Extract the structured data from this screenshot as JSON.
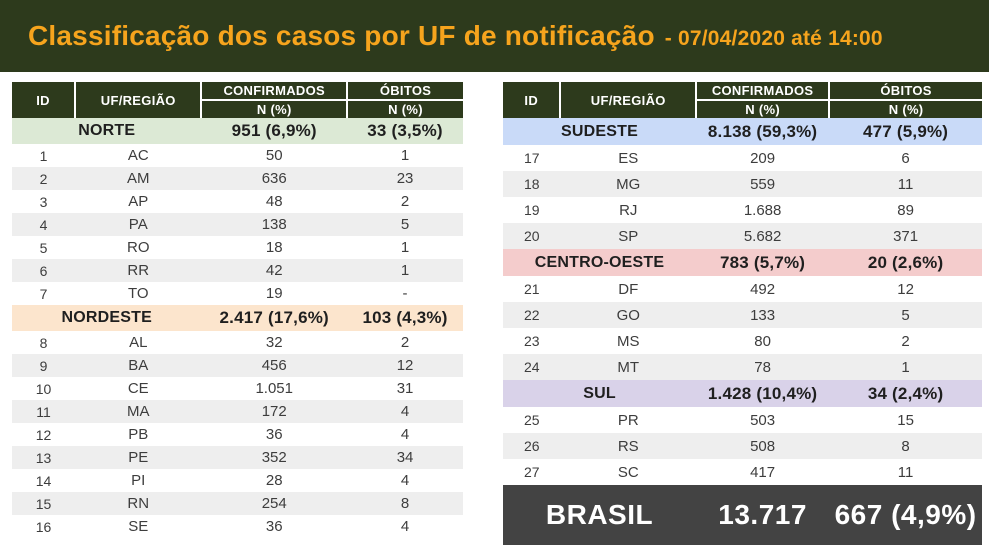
{
  "header": {
    "title": "Classificação dos casos por UF de notificação",
    "subtitle": "- 07/04/2020 até 14:00"
  },
  "columns": {
    "id": "ID",
    "uf": "UF/REGIÃO",
    "confirmed": "CONFIRMADOS",
    "deaths": "ÓBITOS",
    "sub": "N (%)"
  },
  "colors": {
    "banner_bg": "#2d3a1c",
    "title_orange": "#f6a41d",
    "header_bg": "#2d3a1c",
    "stripe": "#eeeeee",
    "norte": "#dce9d5",
    "nordeste": "#fce5cd",
    "sudeste": "#c9daf8",
    "centro_oeste": "#f4cccc",
    "sul": "#d9d2e9",
    "brasil_bg": "#434343"
  },
  "left_table": {
    "sections": [
      {
        "region": "NORTE",
        "confirmed": "951 (6,9%)",
        "deaths": "33 (3,5%)",
        "color_key": "norte",
        "rows": [
          {
            "id": "1",
            "uf": "AC",
            "confirmed": "50",
            "deaths": "1"
          },
          {
            "id": "2",
            "uf": "AM",
            "confirmed": "636",
            "deaths": "23"
          },
          {
            "id": "3",
            "uf": "AP",
            "confirmed": "48",
            "deaths": "2"
          },
          {
            "id": "4",
            "uf": "PA",
            "confirmed": "138",
            "deaths": "5"
          },
          {
            "id": "5",
            "uf": "RO",
            "confirmed": "18",
            "deaths": "1"
          },
          {
            "id": "6",
            "uf": "RR",
            "confirmed": "42",
            "deaths": "1"
          },
          {
            "id": "7",
            "uf": "TO",
            "confirmed": "19",
            "deaths": "-"
          }
        ]
      },
      {
        "region": "NORDESTE",
        "confirmed": "2.417 (17,6%)",
        "deaths": "103 (4,3%)",
        "color_key": "nordeste",
        "rows": [
          {
            "id": "8",
            "uf": "AL",
            "confirmed": "32",
            "deaths": "2"
          },
          {
            "id": "9",
            "uf": "BA",
            "confirmed": "456",
            "deaths": "12"
          },
          {
            "id": "10",
            "uf": "CE",
            "confirmed": "1.051",
            "deaths": "31"
          },
          {
            "id": "11",
            "uf": "MA",
            "confirmed": "172",
            "deaths": "4"
          },
          {
            "id": "12",
            "uf": "PB",
            "confirmed": "36",
            "deaths": "4"
          },
          {
            "id": "13",
            "uf": "PE",
            "confirmed": "352",
            "deaths": "34"
          },
          {
            "id": "14",
            "uf": "PI",
            "confirmed": "28",
            "deaths": "4"
          },
          {
            "id": "15",
            "uf": "RN",
            "confirmed": "254",
            "deaths": "8"
          },
          {
            "id": "16",
            "uf": "SE",
            "confirmed": "36",
            "deaths": "4"
          }
        ]
      }
    ]
  },
  "right_table": {
    "sections": [
      {
        "region": "SUDESTE",
        "confirmed": "8.138 (59,3%)",
        "deaths": "477 (5,9%)",
        "color_key": "sudeste",
        "rows": [
          {
            "id": "17",
            "uf": "ES",
            "confirmed": "209",
            "deaths": "6"
          },
          {
            "id": "18",
            "uf": "MG",
            "confirmed": "559",
            "deaths": "11"
          },
          {
            "id": "19",
            "uf": "RJ",
            "confirmed": "1.688",
            "deaths": "89"
          },
          {
            "id": "20",
            "uf": "SP",
            "confirmed": "5.682",
            "deaths": "371"
          }
        ]
      },
      {
        "region": "CENTRO-OESTE",
        "confirmed": "783 (5,7%)",
        "deaths": "20 (2,6%)",
        "color_key": "centro_oeste",
        "rows": [
          {
            "id": "21",
            "uf": "DF",
            "confirmed": "492",
            "deaths": "12"
          },
          {
            "id": "22",
            "uf": "GO",
            "confirmed": "133",
            "deaths": "5"
          },
          {
            "id": "23",
            "uf": "MS",
            "confirmed": "80",
            "deaths": "2"
          },
          {
            "id": "24",
            "uf": "MT",
            "confirmed": "78",
            "deaths": "1"
          }
        ]
      },
      {
        "region": "SUL",
        "confirmed": "1.428 (10,4%)",
        "deaths": "34 (2,4%)",
        "color_key": "sul",
        "rows": [
          {
            "id": "25",
            "uf": "PR",
            "confirmed": "503",
            "deaths": "15"
          },
          {
            "id": "26",
            "uf": "RS",
            "confirmed": "508",
            "deaths": "8"
          },
          {
            "id": "27",
            "uf": "SC",
            "confirmed": "417",
            "deaths": "11"
          }
        ]
      }
    ],
    "footer": {
      "label": "BRASIL",
      "confirmed": "13.717",
      "deaths": "667 (4,9%)"
    }
  }
}
